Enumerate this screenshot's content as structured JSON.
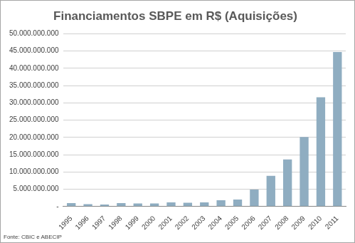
{
  "chart_data": {
    "type": "bar",
    "title": "Financiamentos SBPE em R$ (Aquisições)",
    "source": "Fonte: CBIC e ABECIP",
    "categories": [
      "1995",
      "1996",
      "1997",
      "1998",
      "1999",
      "2000",
      "2001",
      "2002",
      "2003",
      "2004",
      "2005",
      "2006",
      "2007",
      "2008",
      "2009",
      "2010",
      "2011"
    ],
    "values": [
      1000000000,
      700000000,
      600000000,
      1000000000,
      900000000,
      900000000,
      1200000000,
      1100000000,
      1200000000,
      1800000000,
      2000000000,
      4900000000,
      8900000000,
      13600000000,
      20100000000,
      31600000000,
      44700000000
    ],
    "color": "#8fadc1",
    "ylim": [
      0,
      50000000000
    ],
    "yticks": [
      {
        "value": 0,
        "label": "-"
      },
      {
        "value": 5000000000,
        "label": "5.000.000.000"
      },
      {
        "value": 10000000000,
        "label": "10.000.000.000"
      },
      {
        "value": 15000000000,
        "label": "15.000.000.000"
      },
      {
        "value": 20000000000,
        "label": "20.000.000.000"
      },
      {
        "value": 25000000000,
        "label": "25.000.000.000"
      },
      {
        "value": 30000000000,
        "label": "30.000.000.000"
      },
      {
        "value": 35000000000,
        "label": "35.000.000.000"
      },
      {
        "value": 40000000000,
        "label": "40.000.000.000"
      },
      {
        "value": 45000000000,
        "label": "45.000.000.000"
      },
      {
        "value": 50000000000,
        "label": "50.000.000.000"
      }
    ],
    "grid": true
  }
}
